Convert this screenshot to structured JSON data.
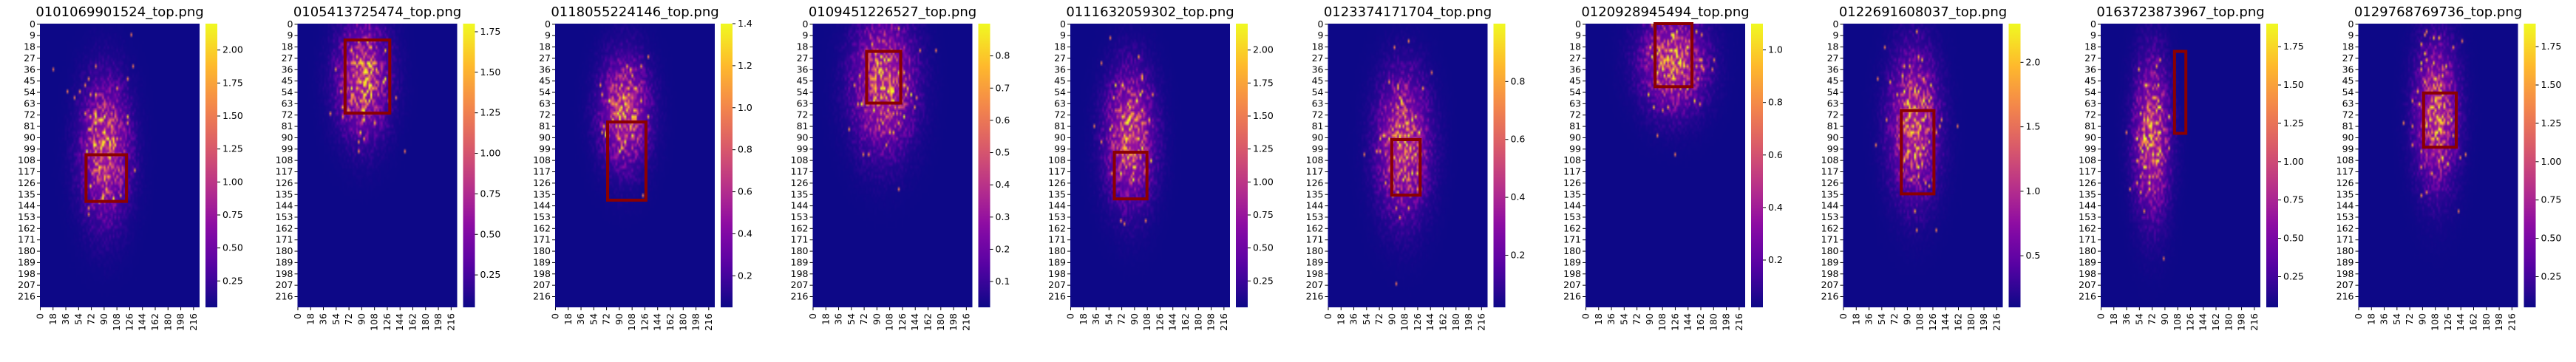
{
  "figure": {
    "colormap": "plasma",
    "background": "#ffffff",
    "roi_color": "#8b0000"
  },
  "chart_data": [
    {
      "type": "heatmap",
      "title": "0101069901524_top.png",
      "xlabel": "",
      "ylabel": "",
      "grid_shape": [
        225,
        225
      ],
      "x_ticks": [
        "0",
        "18",
        "36",
        "54",
        "72",
        "90",
        "108",
        "126",
        "144",
        "162",
        "180",
        "198",
        "216"
      ],
      "y_ticks": [
        "0",
        "9",
        "18",
        "27",
        "36",
        "45",
        "54",
        "63",
        "72",
        "81",
        "90",
        "99",
        "108",
        "117",
        "126",
        "135",
        "144",
        "153",
        "162",
        "171",
        "180",
        "189",
        "198",
        "207",
        "216"
      ],
      "colorbar_range": [
        0.05,
        2.2
      ],
      "colorbar_ticks": [
        "0.25",
        "0.50",
        "0.75",
        "1.00",
        "1.25",
        "1.50",
        "1.75",
        "2.00"
      ],
      "hotspot": {
        "x": 92,
        "y": 100,
        "sx": 30,
        "sy": 48,
        "peak": 2.2
      },
      "roi_box": {
        "x0": 65,
        "x1": 122,
        "y0": 104,
        "y1": 141
      }
    },
    {
      "type": "heatmap",
      "title": "0105413725474_top.png",
      "xlabel": "",
      "ylabel": "",
      "grid_shape": [
        225,
        225
      ],
      "x_ticks": [
        "0",
        "18",
        "36",
        "54",
        "72",
        "90",
        "108",
        "126",
        "144",
        "162",
        "180",
        "198",
        "216"
      ],
      "y_ticks": [
        "0",
        "9",
        "18",
        "27",
        "36",
        "45",
        "54",
        "63",
        "72",
        "81",
        "90",
        "99",
        "108",
        "117",
        "126",
        "135",
        "144",
        "153",
        "162",
        "171",
        "180",
        "189",
        "198",
        "207",
        "216"
      ],
      "colorbar_range": [
        0.05,
        1.8
      ],
      "colorbar_ticks": [
        "0.25",
        "0.50",
        "0.75",
        "1.00",
        "1.25",
        "1.50",
        "1.75"
      ],
      "hotspot": {
        "x": 92,
        "y": 44,
        "sx": 32,
        "sy": 40,
        "peak": 1.8
      },
      "roi_box": {
        "x0": 67,
        "x1": 130,
        "y0": 13,
        "y1": 71
      }
    },
    {
      "type": "heatmap",
      "title": "0118055224146_top.png",
      "xlabel": "",
      "ylabel": "",
      "grid_shape": [
        225,
        225
      ],
      "x_ticks": [
        "0",
        "18",
        "36",
        "54",
        "72",
        "90",
        "108",
        "126",
        "144",
        "162",
        "180",
        "198",
        "216"
      ],
      "y_ticks": [
        "0",
        "9",
        "18",
        "27",
        "36",
        "45",
        "54",
        "63",
        "72",
        "81",
        "90",
        "99",
        "108",
        "117",
        "126",
        "135",
        "144",
        "153",
        "162",
        "171",
        "180",
        "189",
        "198",
        "207",
        "216"
      ],
      "colorbar_range": [
        0.05,
        1.4
      ],
      "colorbar_ticks": [
        "0.2",
        "0.4",
        "0.6",
        "0.8",
        "1.0",
        "1.2",
        "1.4"
      ],
      "hotspot": {
        "x": 98,
        "y": 70,
        "sx": 30,
        "sy": 38,
        "peak": 1.4
      },
      "roi_box": {
        "x0": 74,
        "x1": 128,
        "y0": 78,
        "y1": 140
      }
    },
    {
      "type": "heatmap",
      "title": "0109451226527_top.png",
      "xlabel": "",
      "ylabel": "",
      "grid_shape": [
        225,
        225
      ],
      "x_ticks": [
        "0",
        "18",
        "36",
        "54",
        "72",
        "90",
        "108",
        "126",
        "144",
        "162",
        "180",
        "198",
        "216"
      ],
      "y_ticks": [
        "0",
        "9",
        "18",
        "27",
        "36",
        "45",
        "54",
        "63",
        "72",
        "81",
        "90",
        "99",
        "108",
        "117",
        "126",
        "135",
        "144",
        "153",
        "162",
        "171",
        "180",
        "189",
        "198",
        "207",
        "216"
      ],
      "colorbar_range": [
        0.02,
        0.9
      ],
      "colorbar_ticks": [
        "0.1",
        "0.2",
        "0.3",
        "0.4",
        "0.5",
        "0.6",
        "0.7",
        "0.8"
      ],
      "hotspot": {
        "x": 100,
        "y": 48,
        "sx": 38,
        "sy": 46,
        "peak": 0.9
      },
      "roi_box": {
        "x0": 76,
        "x1": 124,
        "y0": 22,
        "y1": 63
      }
    },
    {
      "type": "heatmap",
      "title": "0111632059302_top.png",
      "xlabel": "",
      "ylabel": "",
      "grid_shape": [
        225,
        225
      ],
      "x_ticks": [
        "0",
        "18",
        "36",
        "54",
        "72",
        "90",
        "108",
        "126",
        "144",
        "162",
        "180",
        "198",
        "216"
      ],
      "y_ticks": [
        "0",
        "9",
        "18",
        "27",
        "36",
        "45",
        "54",
        "63",
        "72",
        "81",
        "90",
        "99",
        "108",
        "117",
        "126",
        "135",
        "144",
        "153",
        "162",
        "171",
        "180",
        "189",
        "198",
        "207",
        "216"
      ],
      "colorbar_range": [
        0.05,
        2.2
      ],
      "colorbar_ticks": [
        "0.25",
        "0.50",
        "0.75",
        "1.00",
        "1.25",
        "1.50",
        "1.75",
        "2.00"
      ],
      "hotspot": {
        "x": 84,
        "y": 90,
        "sx": 30,
        "sy": 46,
        "peak": 2.2
      },
      "roi_box": {
        "x0": 62,
        "x1": 108,
        "y0": 102,
        "y1": 139
      }
    },
    {
      "type": "heatmap",
      "title": "0123374171704_top.png",
      "xlabel": "",
      "ylabel": "",
      "grid_shape": [
        225,
        225
      ],
      "x_ticks": [
        "0",
        "18",
        "36",
        "54",
        "72",
        "90",
        "108",
        "126",
        "144",
        "162",
        "180",
        "198",
        "216"
      ],
      "y_ticks": [
        "0",
        "9",
        "18",
        "27",
        "36",
        "45",
        "54",
        "63",
        "72",
        "81",
        "90",
        "99",
        "108",
        "117",
        "126",
        "135",
        "144",
        "153",
        "162",
        "171",
        "180",
        "189",
        "198",
        "207",
        "216"
      ],
      "colorbar_range": [
        0.02,
        1.0
      ],
      "colorbar_ticks": [
        "0.2",
        "0.4",
        "0.6",
        "0.8"
      ],
      "hotspot": {
        "x": 106,
        "y": 96,
        "sx": 32,
        "sy": 48,
        "peak": 1.0
      },
      "roi_box": {
        "x0": 90,
        "x1": 130,
        "y0": 92,
        "y1": 136
      }
    },
    {
      "type": "heatmap",
      "title": "0120928945494_top.png",
      "xlabel": "",
      "ylabel": "",
      "grid_shape": [
        225,
        225
      ],
      "x_ticks": [
        "0",
        "18",
        "36",
        "54",
        "72",
        "90",
        "108",
        "126",
        "144",
        "162",
        "180",
        "198",
        "216"
      ],
      "y_ticks": [
        "0",
        "9",
        "18",
        "27",
        "36",
        "45",
        "54",
        "63",
        "72",
        "81",
        "90",
        "99",
        "108",
        "117",
        "126",
        "135",
        "144",
        "153",
        "162",
        "171",
        "180",
        "189",
        "198",
        "207",
        "216"
      ],
      "colorbar_range": [
        0.02,
        1.1
      ],
      "colorbar_ticks": [
        "0.2",
        "0.4",
        "0.6",
        "0.8",
        "1.0"
      ],
      "hotspot": {
        "x": 124,
        "y": 30,
        "sx": 40,
        "sy": 34,
        "peak": 1.1
      },
      "roi_box": {
        "x0": 98,
        "x1": 150,
        "y0": 0,
        "y1": 50
      }
    },
    {
      "type": "heatmap",
      "title": "0122691608037_top.png",
      "xlabel": "",
      "ylabel": "",
      "grid_shape": [
        225,
        225
      ],
      "x_ticks": [
        "0",
        "18",
        "36",
        "54",
        "72",
        "90",
        "108",
        "126",
        "144",
        "162",
        "180",
        "198",
        "216"
      ],
      "y_ticks": [
        "0",
        "9",
        "18",
        "27",
        "36",
        "45",
        "54",
        "63",
        "72",
        "81",
        "90",
        "99",
        "108",
        "117",
        "126",
        "135",
        "144",
        "153",
        "162",
        "171",
        "180",
        "189",
        "198",
        "207",
        "216"
      ],
      "colorbar_range": [
        0.1,
        2.3
      ],
      "colorbar_ticks": [
        "0.5",
        "1.0",
        "1.5",
        "2.0"
      ],
      "hotspot": {
        "x": 100,
        "y": 80,
        "sx": 30,
        "sy": 50,
        "peak": 2.3
      },
      "roi_box": {
        "x0": 82,
        "x1": 128,
        "y0": 69,
        "y1": 135
      }
    },
    {
      "type": "heatmap",
      "title": "0163723873967_top.png",
      "xlabel": "",
      "ylabel": "",
      "grid_shape": [
        225,
        225
      ],
      "x_ticks": [
        "0",
        "18",
        "36",
        "54",
        "72",
        "90",
        "108",
        "126",
        "144",
        "162",
        "180",
        "198",
        "216"
      ],
      "y_ticks": [
        "0",
        "9",
        "18",
        "27",
        "36",
        "45",
        "54",
        "63",
        "72",
        "81",
        "90",
        "99",
        "108",
        "117",
        "126",
        "135",
        "144",
        "153",
        "162",
        "171",
        "180",
        "189",
        "198",
        "207",
        "216"
      ],
      "colorbar_range": [
        0.05,
        1.9
      ],
      "colorbar_ticks": [
        "0.25",
        "0.50",
        "0.75",
        "1.00",
        "1.25",
        "1.50",
        "1.75"
      ],
      "hotspot": {
        "x": 72,
        "y": 90,
        "sx": 22,
        "sy": 54,
        "peak": 1.9
      },
      "roi_box": {
        "x0": 104,
        "x1": 120,
        "y0": 22,
        "y1": 87
      }
    },
    {
      "type": "heatmap",
      "title": "0129768769736_top.png",
      "xlabel": "",
      "ylabel": "",
      "grid_shape": [
        225,
        225
      ],
      "x_ticks": [
        "0",
        "18",
        "36",
        "54",
        "72",
        "90",
        "108",
        "126",
        "144",
        "162",
        "180",
        "198",
        "216"
      ],
      "y_ticks": [
        "0",
        "9",
        "18",
        "27",
        "36",
        "45",
        "54",
        "63",
        "72",
        "81",
        "90",
        "99",
        "108",
        "117",
        "126",
        "135",
        "144",
        "153",
        "162",
        "171",
        "180",
        "189",
        "198",
        "207",
        "216"
      ],
      "colorbar_range": [
        0.05,
        1.9
      ],
      "colorbar_ticks": [
        "0.25",
        "0.50",
        "0.75",
        "1.00",
        "1.25",
        "1.50",
        "1.75"
      ],
      "hotspot": {
        "x": 110,
        "y": 72,
        "sx": 26,
        "sy": 50,
        "peak": 1.9
      },
      "roi_box": {
        "x0": 92,
        "x1": 138,
        "y0": 55,
        "y1": 98
      }
    }
  ]
}
